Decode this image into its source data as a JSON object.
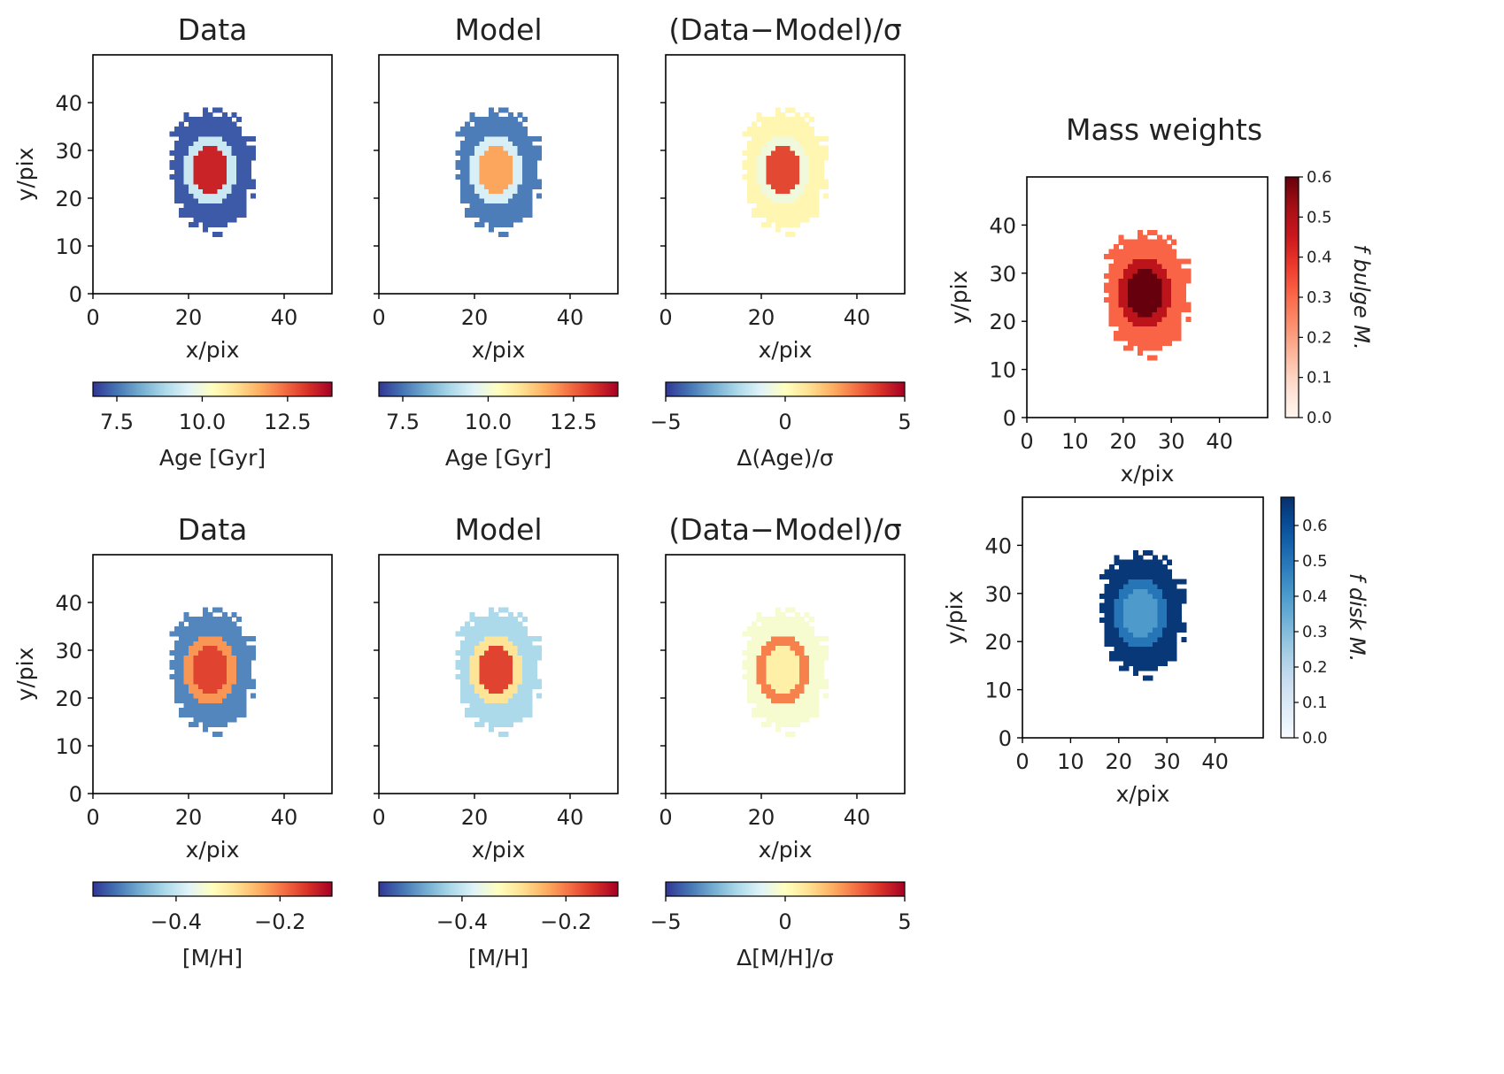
{
  "chart_data": {
    "type": "heatmap",
    "section_title": "Mass weights",
    "panels": [
      {
        "id": "age-data",
        "title": "Data",
        "xlabel": "x/pix",
        "ylabel": "y/pix",
        "xlim": [
          0,
          50
        ],
        "ylim": [
          0,
          50
        ],
        "xticks": [
          "0",
          "20",
          "40"
        ],
        "yticks": [
          "0",
          "10",
          "20",
          "30",
          "40"
        ],
        "colorbar": {
          "label": "Age [Gyr]",
          "range": [
            6.8,
            13.8
          ],
          "ticks": [
            "7.5",
            "10.0",
            "12.5"
          ],
          "colormap": "RdYlBu_r"
        },
        "region_values": {
          "outer": 7.2,
          "ring": 9.3,
          "core": 13.3
        }
      },
      {
        "id": "age-model",
        "title": "Model",
        "xlabel": "x/pix",
        "ylabel": "",
        "xlim": [
          0,
          50
        ],
        "ylim": [
          0,
          50
        ],
        "xticks": [
          "0",
          "20",
          "40"
        ],
        "yticks": [],
        "colorbar": {
          "label": "Age [Gyr]",
          "range": [
            6.8,
            13.8
          ],
          "ticks": [
            "7.5",
            "10.0",
            "12.5"
          ],
          "colormap": "RdYlBu_r"
        },
        "region_values": {
          "outer": 7.6,
          "ring": 9.5,
          "core": 11.8
        }
      },
      {
        "id": "age-residual",
        "title": "(Data−Model)/σ",
        "xlabel": "x/pix",
        "ylabel": "",
        "xlim": [
          0,
          50
        ],
        "ylim": [
          0,
          50
        ],
        "xticks": [
          "0",
          "20",
          "40"
        ],
        "yticks": [],
        "colorbar": {
          "label": "Δ(Age)/σ",
          "range": [
            -5,
            5
          ],
          "ticks": [
            "−5",
            "0",
            "5"
          ],
          "colormap": "RdYlBu_r"
        },
        "region_values": {
          "outer": 0.3,
          "ring": -0.5,
          "core": 3.6
        }
      },
      {
        "id": "mh-data",
        "title": "Data",
        "xlabel": "x/pix",
        "ylabel": "y/pix",
        "xlim": [
          0,
          50
        ],
        "ylim": [
          0,
          50
        ],
        "xticks": [
          "0",
          "20",
          "40"
        ],
        "yticks": [
          "0",
          "10",
          "20",
          "30",
          "40"
        ],
        "colorbar": {
          "label": "[M/H]",
          "range": [
            -0.56,
            -0.1
          ],
          "ticks": [
            "−0.4",
            "−0.2"
          ],
          "colormap": "RdYlBu_r"
        },
        "region_values": {
          "outer": -0.5,
          "ring": -0.22,
          "core": -0.16
        }
      },
      {
        "id": "mh-model",
        "title": "Model",
        "xlabel": "x/pix",
        "ylabel": "",
        "xlim": [
          0,
          50
        ],
        "ylim": [
          0,
          50
        ],
        "xticks": [
          "0",
          "20",
          "40"
        ],
        "yticks": [],
        "colorbar": {
          "label": "[M/H]",
          "range": [
            -0.56,
            -0.1
          ],
          "ticks": [
            "−0.4",
            "−0.2"
          ],
          "colormap": "RdYlBu_r"
        },
        "region_values": {
          "outer": -0.42,
          "ring": -0.29,
          "core": -0.16
        }
      },
      {
        "id": "mh-residual",
        "title": "(Data−Model)/σ",
        "xlabel": "x/pix",
        "ylabel": "",
        "xlim": [
          0,
          50
        ],
        "ylim": [
          0,
          50
        ],
        "xticks": [
          "0",
          "20",
          "40"
        ],
        "yticks": [],
        "colorbar": {
          "label": "Δ[M/H]/σ",
          "range": [
            -5,
            5
          ],
          "ticks": [
            "−5",
            "0",
            "5"
          ],
          "colormap": "RdYlBu_r"
        },
        "region_values": {
          "outer": -0.3,
          "ring": 2.7,
          "core": 0.5
        }
      },
      {
        "id": "bulge",
        "title": "",
        "xlabel": "x/pix",
        "ylabel": "y/pix",
        "xlim": [
          0,
          50
        ],
        "ylim": [
          0,
          50
        ],
        "xticks": [
          "0",
          "10",
          "20",
          "30",
          "40"
        ],
        "yticks": [
          "0",
          "10",
          "20",
          "30",
          "40"
        ],
        "colorbar": {
          "label": "f bulge M.",
          "range": [
            0,
            0.6
          ],
          "ticks": [
            "0.0",
            "0.1",
            "0.2",
            "0.3",
            "0.4",
            "0.5",
            "0.6"
          ],
          "colormap": "Reds"
        },
        "region_values": {
          "outer": 0.31,
          "ring": 0.48,
          "core": 0.6
        }
      },
      {
        "id": "disk",
        "title": "",
        "xlabel": "x/pix",
        "ylabel": "y/pix",
        "xlim": [
          0,
          50
        ],
        "ylim": [
          0,
          50
        ],
        "xticks": [
          "0",
          "10",
          "20",
          "30",
          "40"
        ],
        "yticks": [
          "0",
          "10",
          "20",
          "30",
          "40"
        ],
        "colorbar": {
          "label": "f disk M.",
          "range": [
            0,
            0.68
          ],
          "ticks": [
            "0.0",
            "0.1",
            "0.2",
            "0.3",
            "0.4",
            "0.5",
            "0.6"
          ],
          "colormap": "Blues"
        },
        "region_values": {
          "outer": 0.66,
          "ring": 0.5,
          "core": 0.4
        }
      }
    ]
  }
}
